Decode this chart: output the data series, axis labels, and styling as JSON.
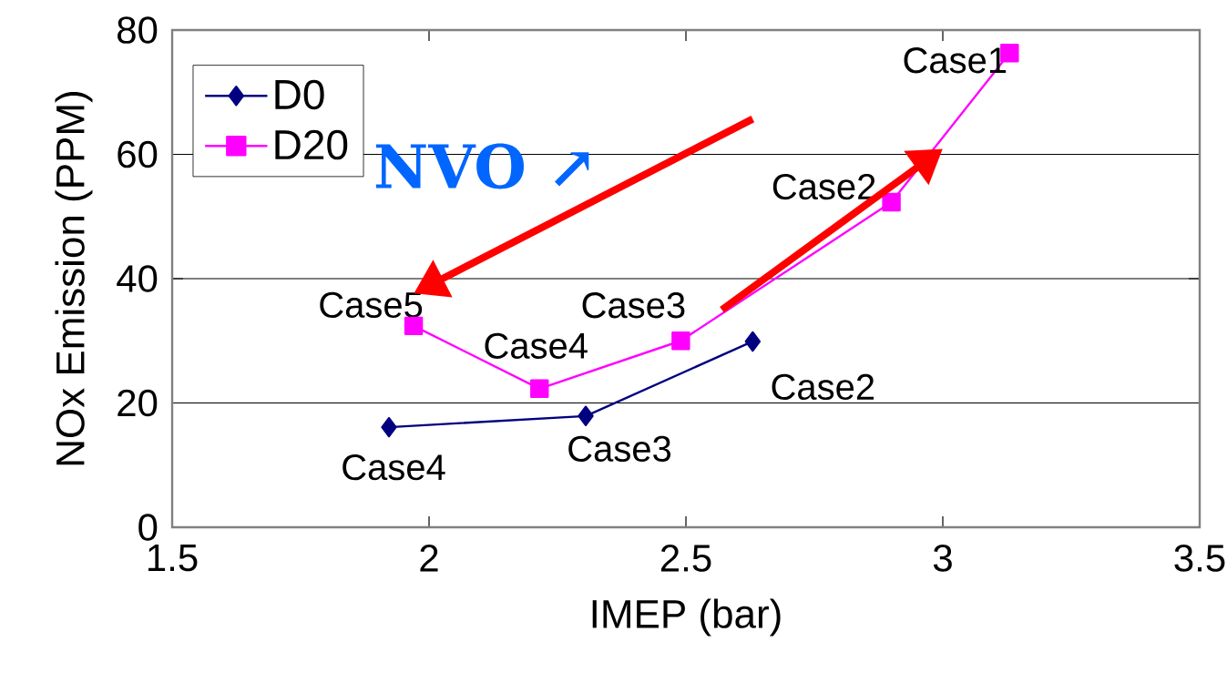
{
  "chart_data": {
    "type": "line",
    "xlabel": "IMEP (bar)",
    "ylabel": "NOx Emission (PPM)",
    "xlim": [
      1.5,
      3.5
    ],
    "ylim": [
      0,
      80
    ],
    "xticks": [
      1.5,
      2,
      2.5,
      3,
      3.5
    ],
    "yticks": [
      0,
      20,
      40,
      60,
      80
    ],
    "grid": "y",
    "legend": "top left",
    "line_style": "solid",
    "series": [
      {
        "name": "D0",
        "color": "#000080",
        "marker": "diamond",
        "x": [
          1.922,
          2.305,
          2.63
        ],
        "values": [
          16.1,
          17.9,
          29.9
        ]
      },
      {
        "name": "D20",
        "color": "#ff00ff",
        "marker": "square",
        "x": [
          1.97,
          2.215,
          2.49,
          2.9,
          3.13
        ],
        "values": [
          32.4,
          22.3,
          30.0,
          52.3,
          76.3
        ]
      }
    ],
    "annotations": [
      {
        "text": "Case1",
        "x": 3.13,
        "y": 76.3
      },
      {
        "text": "Case2",
        "x": 2.9,
        "y": 52.3
      },
      {
        "text": "Case3",
        "x": 2.49,
        "y": 30.0
      },
      {
        "text": "Case4",
        "x": 2.215,
        "y": 22.3
      },
      {
        "text": "Case5",
        "x": 1.97,
        "y": 32.4
      },
      {
        "text": "Case2",
        "x": 2.63,
        "y": 29.9
      },
      {
        "text": "Case3",
        "x": 2.305,
        "y": 17.9
      },
      {
        "text": "Case4",
        "x": 1.922,
        "y": 16.1
      },
      "NVO ↗"
    ]
  }
}
